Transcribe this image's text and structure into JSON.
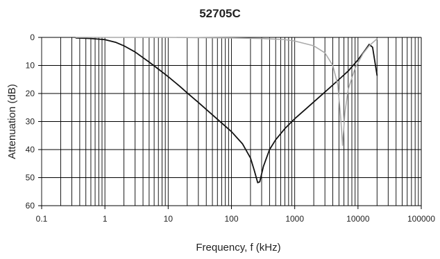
{
  "chart_data": {
    "type": "line",
    "title": "52705C",
    "xlabel": "Frequency, f (kHz)",
    "ylabel": "Attenuation (dB)",
    "x_scale": "log",
    "xlim": [
      0.1,
      100000
    ],
    "ylim": [
      0,
      60
    ],
    "y_inverted": true,
    "grid": true,
    "x_ticks": [
      "0.1",
      "1",
      "10",
      "100",
      "1000",
      "10000",
      "100000"
    ],
    "y_ticks": [
      "0",
      "10",
      "20",
      "30",
      "40",
      "50",
      "60"
    ],
    "series": [
      {
        "color": "#111111",
        "points": [
          [
            0.35,
            0.2
          ],
          [
            0.6,
            0.4
          ],
          [
            1,
            0.8
          ],
          [
            1.5,
            1.8
          ],
          [
            2,
            3
          ],
          [
            3,
            5.2
          ],
          [
            5,
            8.8
          ],
          [
            7,
            11.3
          ],
          [
            10,
            14
          ],
          [
            15,
            17.3
          ],
          [
            20,
            19.8
          ],
          [
            30,
            23.2
          ],
          [
            50,
            27.6
          ],
          [
            70,
            30.5
          ],
          [
            100,
            33.6
          ],
          [
            150,
            38
          ],
          [
            200,
            43
          ],
          [
            230,
            47.5
          ],
          [
            260,
            51.8
          ],
          [
            280,
            51.5
          ],
          [
            320,
            46
          ],
          [
            400,
            40
          ],
          [
            500,
            36.5
          ],
          [
            700,
            32.5
          ],
          [
            1000,
            29
          ],
          [
            1500,
            25.5
          ],
          [
            2000,
            23
          ],
          [
            3000,
            19.5
          ],
          [
            5000,
            15
          ],
          [
            7000,
            12
          ],
          [
            10000,
            8
          ],
          [
            13000,
            4.5
          ],
          [
            15000,
            2.5
          ],
          [
            17000,
            3.5
          ],
          [
            20000,
            13.5
          ]
        ]
      },
      {
        "color": "#aaaaaa",
        "points": [
          [
            0.35,
            0
          ],
          [
            1,
            0
          ],
          [
            10,
            0
          ],
          [
            100,
            0.2
          ],
          [
            300,
            0.4
          ],
          [
            700,
            0.8
          ],
          [
            1000,
            1.3
          ],
          [
            2000,
            3
          ],
          [
            3000,
            5.5
          ],
          [
            4000,
            10
          ],
          [
            4800,
            17
          ],
          [
            5300,
            28
          ],
          [
            5700,
            38.5
          ],
          [
            6200,
            27
          ],
          [
            7000,
            18.5
          ],
          [
            9000,
            11
          ],
          [
            12000,
            5.8
          ],
          [
            15000,
            3
          ],
          [
            20000,
            0.5
          ]
        ]
      }
    ]
  }
}
